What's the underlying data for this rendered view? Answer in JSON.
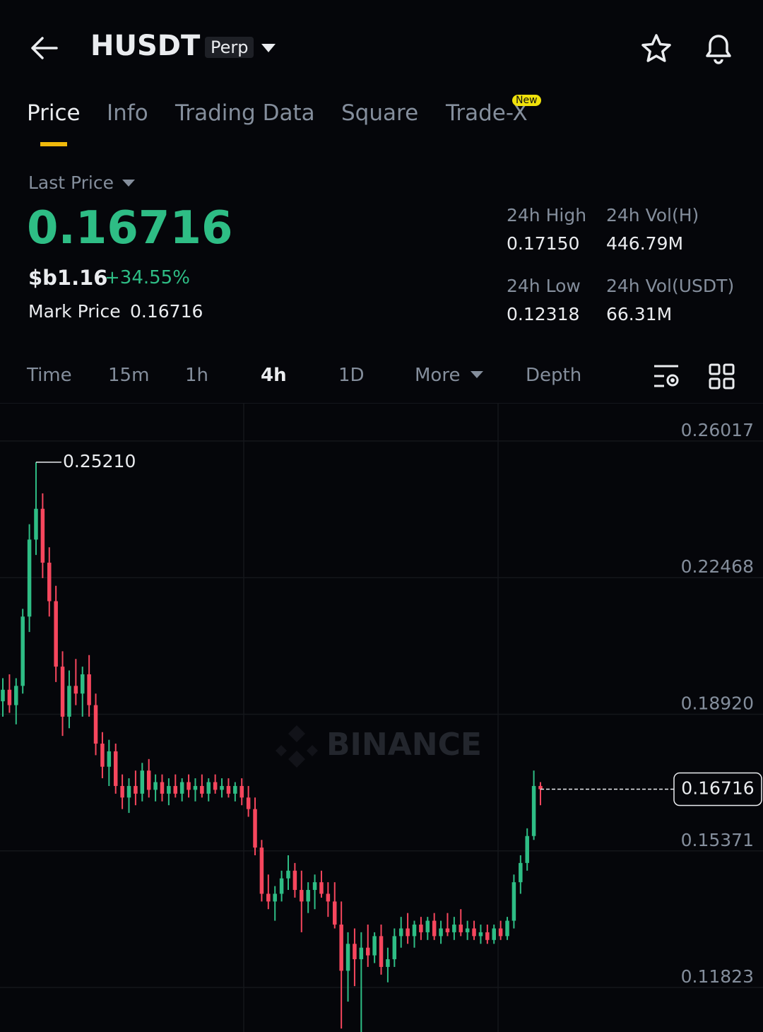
{
  "header": {
    "symbol": "HUSDT",
    "badge": "Perp"
  },
  "tabs": [
    "Price",
    "Info",
    "Trading Data",
    "Square",
    "Trade-X"
  ],
  "new_badge": "New",
  "price": {
    "label": "Last Price",
    "value": "0.16716",
    "fiat": "$b1.16",
    "change": "+34.55%",
    "mark_label": "Mark Price",
    "mark_value": "0.16716"
  },
  "stats": [
    {
      "label": "24h High",
      "value": "0.17150"
    },
    {
      "label": "24h Vol(H)",
      "value": "446.79M"
    },
    {
      "label": "24h Low",
      "value": "0.12318"
    },
    {
      "label": "24h Vol(USDT)",
      "value": "66.31M"
    }
  ],
  "intervals": [
    "Time",
    "15m",
    "1h",
    "4h",
    "1D",
    "More",
    "Depth"
  ],
  "chart_data": {
    "type": "candlestick",
    "watermark": "BINANCE",
    "up_color": "#2ebd85",
    "down_color": "#f6465d",
    "ylim": [
      0.1041,
      0.2675
    ],
    "yticks": [
      {
        "value": 0.26017,
        "label": "0.26017"
      },
      {
        "value": 0.22468,
        "label": "0.22468"
      },
      {
        "value": 0.1892,
        "label": "0.18920"
      },
      {
        "value": 0.15371,
        "label": "0.15371"
      },
      {
        "value": 0.11823,
        "label": "0.11823"
      }
    ],
    "max_marker": {
      "value": 0.2521,
      "label": "0.25210"
    },
    "last_price_marker": {
      "value": 0.16716,
      "label": "0.16716"
    },
    "ohlc": [
      [
        0.19,
        0.196,
        0.186,
        0.193
      ],
      [
        0.193,
        0.197,
        0.187,
        0.189
      ],
      [
        0.189,
        0.196,
        0.184,
        0.194
      ],
      [
        0.194,
        0.214,
        0.192,
        0.212
      ],
      [
        0.212,
        0.236,
        0.208,
        0.232
      ],
      [
        0.232,
        0.2521,
        0.228,
        0.24
      ],
      [
        0.24,
        0.244,
        0.222,
        0.226
      ],
      [
        0.226,
        0.23,
        0.212,
        0.216
      ],
      [
        0.216,
        0.22,
        0.195,
        0.199
      ],
      [
        0.199,
        0.203,
        0.181,
        0.186
      ],
      [
        0.186,
        0.198,
        0.183,
        0.194
      ],
      [
        0.194,
        0.201,
        0.189,
        0.192
      ],
      [
        0.192,
        0.199,
        0.186,
        0.197
      ],
      [
        0.197,
        0.202,
        0.186,
        0.189
      ],
      [
        0.189,
        0.192,
        0.176,
        0.179
      ],
      [
        0.179,
        0.182,
        0.17,
        0.173
      ],
      [
        0.173,
        0.18,
        0.168,
        0.177
      ],
      [
        0.177,
        0.179,
        0.166,
        0.168
      ],
      [
        0.168,
        0.171,
        0.162,
        0.165
      ],
      [
        0.165,
        0.17,
        0.161,
        0.168
      ],
      [
        0.168,
        0.172,
        0.163,
        0.166
      ],
      [
        0.166,
        0.174,
        0.164,
        0.172
      ],
      [
        0.172,
        0.175,
        0.165,
        0.167
      ],
      [
        0.167,
        0.171,
        0.164,
        0.169
      ],
      [
        0.169,
        0.171,
        0.164,
        0.166
      ],
      [
        0.166,
        0.17,
        0.163,
        0.168
      ],
      [
        0.168,
        0.171,
        0.165,
        0.166
      ],
      [
        0.166,
        0.17,
        0.164,
        0.169
      ],
      [
        0.169,
        0.171,
        0.165,
        0.167
      ],
      [
        0.167,
        0.17,
        0.164,
        0.168
      ],
      [
        0.168,
        0.171,
        0.165,
        0.166
      ],
      [
        0.166,
        0.17,
        0.164,
        0.169
      ],
      [
        0.169,
        0.171,
        0.166,
        0.167
      ],
      [
        0.167,
        0.17,
        0.165,
        0.168
      ],
      [
        0.168,
        0.17,
        0.165,
        0.166
      ],
      [
        0.166,
        0.169,
        0.164,
        0.168
      ],
      [
        0.168,
        0.17,
        0.163,
        0.165
      ],
      [
        0.165,
        0.168,
        0.16,
        0.162
      ],
      [
        0.162,
        0.165,
        0.15,
        0.152
      ],
      [
        0.152,
        0.154,
        0.138,
        0.14
      ],
      [
        0.14,
        0.145,
        0.136,
        0.138
      ],
      [
        0.138,
        0.142,
        0.133,
        0.14
      ],
      [
        0.14,
        0.146,
        0.138,
        0.144
      ],
      [
        0.144,
        0.15,
        0.141,
        0.146
      ],
      [
        0.146,
        0.148,
        0.139,
        0.141
      ],
      [
        0.141,
        0.146,
        0.13,
        0.138
      ],
      [
        0.138,
        0.143,
        0.135,
        0.141
      ],
      [
        0.141,
        0.145,
        0.136,
        0.143
      ],
      [
        0.143,
        0.146,
        0.139,
        0.14
      ],
      [
        0.14,
        0.143,
        0.134,
        0.138
      ],
      [
        0.138,
        0.143,
        0.131,
        0.132
      ],
      [
        0.132,
        0.138,
        0.105,
        0.12
      ],
      [
        0.12,
        0.13,
        0.112,
        0.127
      ],
      [
        0.127,
        0.131,
        0.116,
        0.123
      ],
      [
        0.123,
        0.13,
        0.104,
        0.126
      ],
      [
        0.126,
        0.132,
        0.121,
        0.124
      ],
      [
        0.124,
        0.13,
        0.122,
        0.129
      ],
      [
        0.129,
        0.132,
        0.119,
        0.121
      ],
      [
        0.121,
        0.126,
        0.117,
        0.123
      ],
      [
        0.123,
        0.131,
        0.121,
        0.129
      ],
      [
        0.129,
        0.134,
        0.126,
        0.131
      ],
      [
        0.131,
        0.135,
        0.127,
        0.129
      ],
      [
        0.129,
        0.133,
        0.126,
        0.132
      ],
      [
        0.132,
        0.134,
        0.128,
        0.13
      ],
      [
        0.13,
        0.134,
        0.128,
        0.133
      ],
      [
        0.133,
        0.135,
        0.128,
        0.129
      ],
      [
        0.129,
        0.133,
        0.127,
        0.131
      ],
      [
        0.131,
        0.135,
        0.129,
        0.13
      ],
      [
        0.13,
        0.134,
        0.128,
        0.132
      ],
      [
        0.132,
        0.136,
        0.129,
        0.13
      ],
      [
        0.13,
        0.133,
        0.128,
        0.131
      ],
      [
        0.131,
        0.133,
        0.128,
        0.129
      ],
      [
        0.129,
        0.132,
        0.127,
        0.13
      ],
      [
        0.13,
        0.132,
        0.127,
        0.128
      ],
      [
        0.128,
        0.132,
        0.127,
        0.131
      ],
      [
        0.131,
        0.133,
        0.128,
        0.129
      ],
      [
        0.129,
        0.134,
        0.128,
        0.133
      ],
      [
        0.133,
        0.145,
        0.131,
        0.143
      ],
      [
        0.143,
        0.15,
        0.14,
        0.148
      ],
      [
        0.148,
        0.157,
        0.146,
        0.155
      ],
      [
        0.155,
        0.172,
        0.154,
        0.168
      ],
      [
        0.168,
        0.169,
        0.163,
        0.16716
      ]
    ]
  }
}
